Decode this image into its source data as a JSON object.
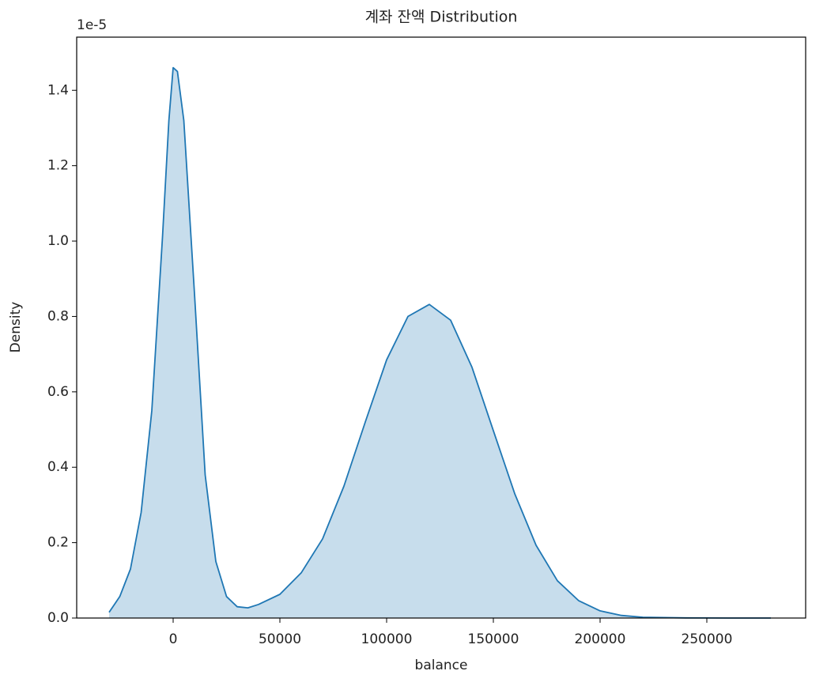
{
  "chart_data": {
    "type": "kde",
    "title": "계좌 잔액 Distribution",
    "x_label": "balance",
    "y_label": "Density",
    "y_offset_label": "1e-5",
    "x": [
      -30000,
      -25000,
      -20000,
      -15000,
      -10000,
      -5000,
      -2000,
      0,
      2000,
      5000,
      10000,
      15000,
      20000,
      25000,
      30000,
      35000,
      40000,
      50000,
      60000,
      70000,
      80000,
      90000,
      100000,
      110000,
      120000,
      130000,
      140000,
      150000,
      160000,
      170000,
      180000,
      190000,
      200000,
      210000,
      220000,
      240000,
      260000,
      280000
    ],
    "series": [
      {
        "name": "balance",
        "color": "#1f77b4",
        "values": [
          0.015,
          0.057,
          0.13,
          0.28,
          0.55,
          1.01,
          1.32,
          1.46,
          1.45,
          1.32,
          0.86,
          0.38,
          0.15,
          0.057,
          0.03,
          0.027,
          0.036,
          0.063,
          0.12,
          0.21,
          0.35,
          0.52,
          0.685,
          0.8,
          0.832,
          0.79,
          0.665,
          0.497,
          0.33,
          0.193,
          0.099,
          0.046,
          0.019,
          0.007,
          0.002,
          0.0005,
          0,
          0
        ]
      }
    ],
    "xlim": [
      -45185,
      296296
    ],
    "ylim": [
      0,
      1.541
    ],
    "xticks": [
      0,
      50000,
      100000,
      150000,
      200000,
      250000
    ],
    "yticks": [
      {
        "value": 0,
        "label": "0.0"
      },
      0.2,
      0.4,
      0.6,
      0.8,
      {
        "value": 1,
        "label": "1.0"
      },
      1.2,
      1.4
    ],
    "fill_opacity": 0.25
  }
}
